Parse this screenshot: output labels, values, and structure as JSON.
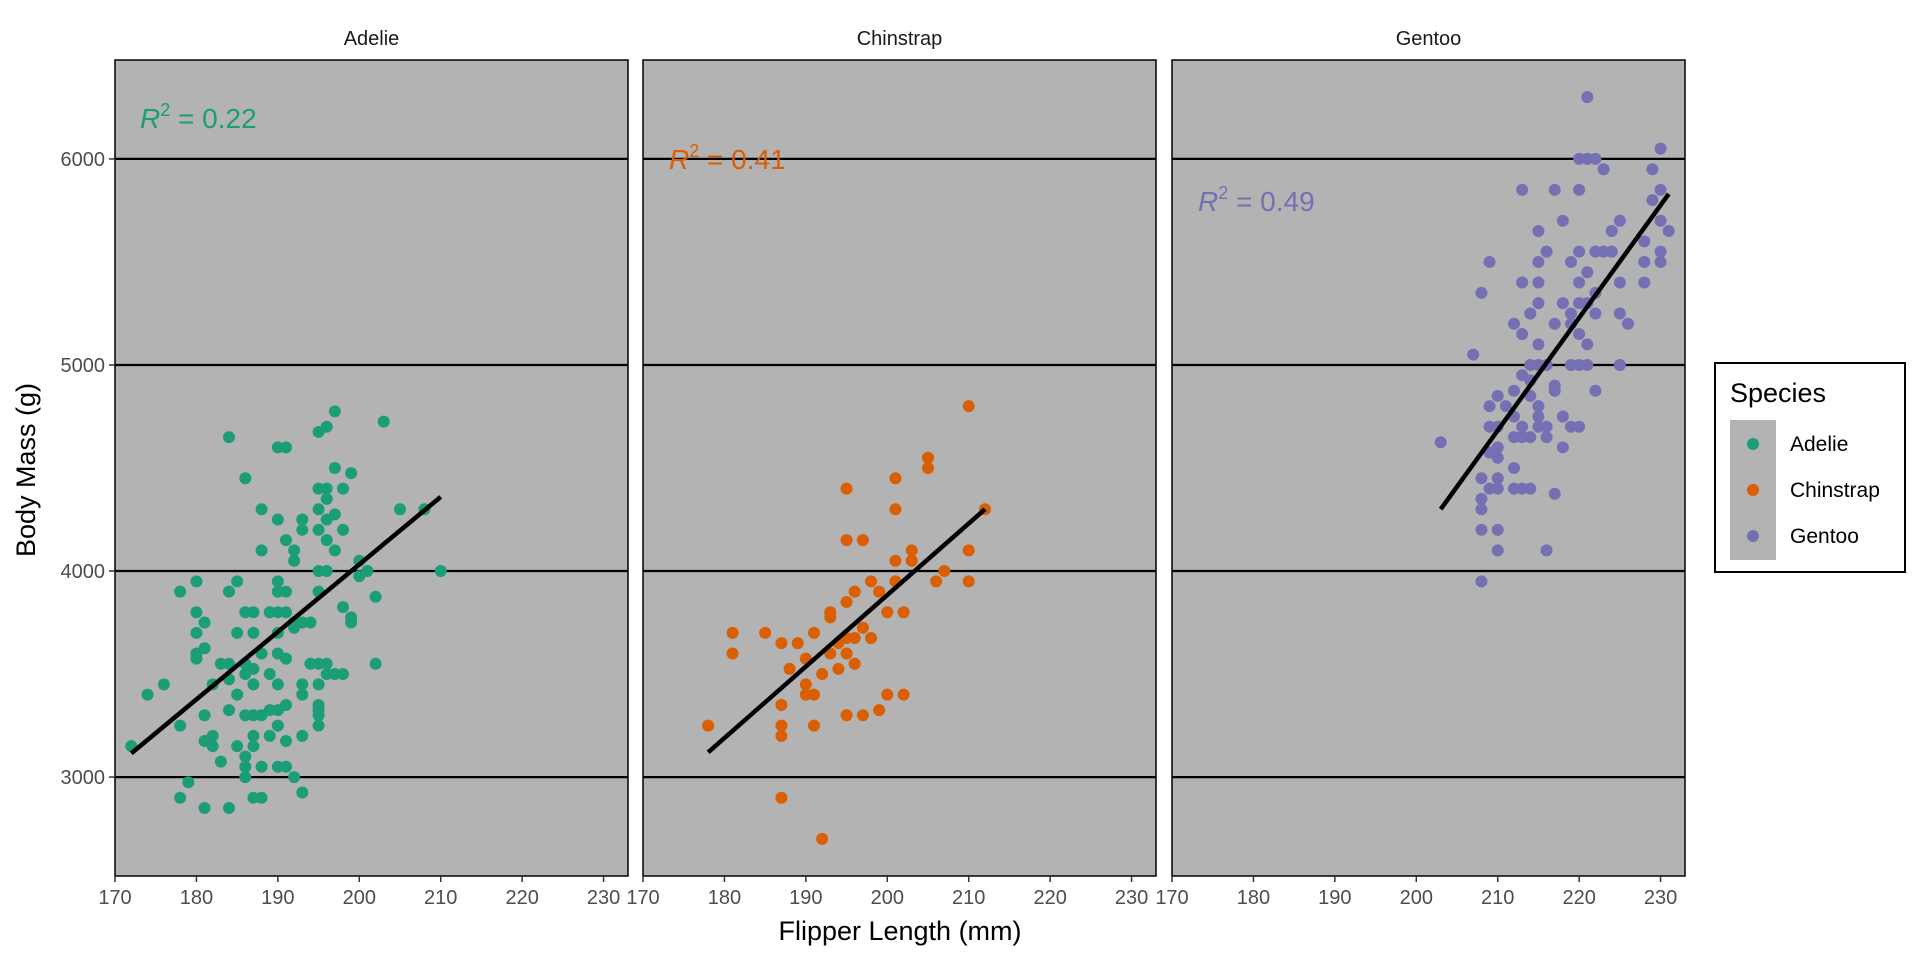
{
  "chart_data": {
    "type": "scatter",
    "facets": [
      "Adelie",
      "Chinstrap",
      "Gentoo"
    ],
    "xlabel": "Flipper Length (mm)",
    "ylabel": "Body Mass (g)",
    "xlim": [
      170,
      233
    ],
    "ylim": [
      2520,
      6480
    ],
    "x_ticks": [
      170,
      180,
      190,
      200,
      210,
      220,
      230
    ],
    "y_ticks": [
      3000,
      4000,
      5000,
      6000
    ],
    "background": "#b3b3b3",
    "grid": "horizontal major lines only",
    "legend": {
      "title": "Species",
      "position": "right",
      "entries": [
        "Adelie",
        "Chinstrap",
        "Gentoo"
      ]
    },
    "colors": {
      "Adelie": "#1b9e77",
      "Chinstrap": "#d95f02",
      "Gentoo": "#7570b3",
      "fit": "#000000"
    },
    "series": [
      {
        "name": "Adelie",
        "r2_label": {
          "symbol": "R",
          "sup": "2",
          "value": " = 0.22"
        },
        "fit": {
          "x": [
            172,
            210
          ],
          "y": [
            3115,
            4360
          ]
        },
        "points": [
          [
            172,
            3150
          ],
          [
            174,
            3400
          ],
          [
            176,
            3450
          ],
          [
            178,
            3250
          ],
          [
            178,
            2900
          ],
          [
            178,
            3900
          ],
          [
            179,
            2975
          ],
          [
            180,
            3575
          ],
          [
            180,
            3600
          ],
          [
            180,
            3700
          ],
          [
            180,
            3800
          ],
          [
            180,
            3950
          ],
          [
            181,
            2850
          ],
          [
            181,
            3175
          ],
          [
            181,
            3300
          ],
          [
            181,
            3625
          ],
          [
            181,
            3750
          ],
          [
            182,
            3150
          ],
          [
            182,
            3200
          ],
          [
            182,
            3450
          ],
          [
            183,
            3075
          ],
          [
            183,
            3550
          ],
          [
            184,
            2850
          ],
          [
            184,
            3325
          ],
          [
            184,
            3475
          ],
          [
            184,
            3550
          ],
          [
            184,
            3900
          ],
          [
            184,
            4650
          ],
          [
            185,
            3150
          ],
          [
            185,
            3400
          ],
          [
            185,
            3700
          ],
          [
            185,
            3950
          ],
          [
            186,
            3000
          ],
          [
            186,
            3050
          ],
          [
            186,
            3100
          ],
          [
            186,
            3300
          ],
          [
            186,
            3500
          ],
          [
            186,
            3550
          ],
          [
            186,
            3800
          ],
          [
            186,
            4450
          ],
          [
            187,
            2900
          ],
          [
            187,
            3150
          ],
          [
            187,
            3200
          ],
          [
            187,
            3300
          ],
          [
            187,
            3450
          ],
          [
            187,
            3525
          ],
          [
            187,
            3700
          ],
          [
            187,
            3800
          ],
          [
            188,
            2900
          ],
          [
            188,
            3050
          ],
          [
            188,
            3300
          ],
          [
            188,
            3600
          ],
          [
            188,
            4100
          ],
          [
            188,
            4300
          ],
          [
            189,
            3200
          ],
          [
            189,
            3325
          ],
          [
            189,
            3500
          ],
          [
            189,
            3800
          ],
          [
            190,
            3050
          ],
          [
            190,
            3250
          ],
          [
            190,
            3325
          ],
          [
            190,
            3450
          ],
          [
            190,
            3600
          ],
          [
            190,
            3700
          ],
          [
            190,
            3800
          ],
          [
            190,
            3900
          ],
          [
            190,
            3950
          ],
          [
            190,
            4250
          ],
          [
            190,
            4600
          ],
          [
            191,
            3050
          ],
          [
            191,
            3175
          ],
          [
            191,
            3350
          ],
          [
            191,
            3575
          ],
          [
            191,
            3800
          ],
          [
            191,
            3900
          ],
          [
            191,
            4150
          ],
          [
            191,
            4600
          ],
          [
            192,
            3000
          ],
          [
            192,
            3725
          ],
          [
            192,
            3750
          ],
          [
            192,
            4050
          ],
          [
            192,
            4100
          ],
          [
            193,
            2925
          ],
          [
            193,
            3200
          ],
          [
            193,
            3400
          ],
          [
            193,
            3450
          ],
          [
            193,
            3750
          ],
          [
            193,
            4200
          ],
          [
            193,
            4250
          ],
          [
            194,
            3550
          ],
          [
            194,
            3750
          ],
          [
            195,
            3250
          ],
          [
            195,
            3300
          ],
          [
            195,
            3325
          ],
          [
            195,
            3350
          ],
          [
            195,
            3450
          ],
          [
            195,
            3550
          ],
          [
            195,
            3900
          ],
          [
            195,
            4000
          ],
          [
            195,
            4200
          ],
          [
            195,
            4300
          ],
          [
            195,
            4400
          ],
          [
            195,
            4675
          ],
          [
            196,
            3550
          ],
          [
            196,
            3500
          ],
          [
            196,
            4000
          ],
          [
            196,
            4150
          ],
          [
            196,
            4250
          ],
          [
            196,
            4350
          ],
          [
            196,
            4400
          ],
          [
            196,
            4700
          ],
          [
            197,
            3500
          ],
          [
            197,
            4100
          ],
          [
            197,
            4275
          ],
          [
            197,
            4500
          ],
          [
            197,
            4775
          ],
          [
            198,
            3500
          ],
          [
            198,
            3825
          ],
          [
            198,
            4200
          ],
          [
            198,
            4400
          ],
          [
            199,
            3750
          ],
          [
            199,
            3775
          ],
          [
            199,
            4475
          ],
          [
            200,
            3975
          ],
          [
            200,
            4050
          ],
          [
            201,
            4000
          ],
          [
            202,
            3550
          ],
          [
            202,
            3875
          ],
          [
            203,
            4725
          ],
          [
            205,
            4300
          ],
          [
            208,
            4300
          ],
          [
            210,
            4000
          ]
        ]
      },
      {
        "name": "Chinstrap",
        "r2_label": {
          "symbol": "R",
          "sup": "2",
          "value": " = 0.41"
        },
        "fit": {
          "x": [
            178,
            212
          ],
          "y": [
            3120,
            4300
          ]
        },
        "points": [
          [
            178,
            3250
          ],
          [
            181,
            3700
          ],
          [
            181,
            3600
          ],
          [
            185,
            3700
          ],
          [
            187,
            2900
          ],
          [
            187,
            3200
          ],
          [
            187,
            3250
          ],
          [
            187,
            3350
          ],
          [
            187,
            3650
          ],
          [
            188,
            3525
          ],
          [
            189,
            3650
          ],
          [
            190,
            3400
          ],
          [
            190,
            3450
          ],
          [
            190,
            3575
          ],
          [
            191,
            3250
          ],
          [
            191,
            3400
          ],
          [
            191,
            3700
          ],
          [
            192,
            2700
          ],
          [
            192,
            3500
          ],
          [
            193,
            3600
          ],
          [
            193,
            3775
          ],
          [
            193,
            3800
          ],
          [
            194,
            3525
          ],
          [
            194,
            3650
          ],
          [
            195,
            3300
          ],
          [
            195,
            3600
          ],
          [
            195,
            3675
          ],
          [
            195,
            3850
          ],
          [
            195,
            4150
          ],
          [
            195,
            4400
          ],
          [
            196,
            3550
          ],
          [
            196,
            3675
          ],
          [
            196,
            3900
          ],
          [
            197,
            3300
          ],
          [
            197,
            3725
          ],
          [
            197,
            4150
          ],
          [
            198,
            3675
          ],
          [
            198,
            3950
          ],
          [
            199,
            3325
          ],
          [
            199,
            3900
          ],
          [
            200,
            3400
          ],
          [
            200,
            3800
          ],
          [
            201,
            3950
          ],
          [
            201,
            4050
          ],
          [
            201,
            4300
          ],
          [
            201,
            4450
          ],
          [
            202,
            3400
          ],
          [
            202,
            3800
          ],
          [
            203,
            4050
          ],
          [
            203,
            4100
          ],
          [
            205,
            4500
          ],
          [
            205,
            4550
          ],
          [
            206,
            3950
          ],
          [
            207,
            4000
          ],
          [
            210,
            3950
          ],
          [
            210,
            4100
          ],
          [
            210,
            4800
          ],
          [
            212,
            4300
          ]
        ]
      },
      {
        "name": "Gentoo",
        "r2_label": {
          "symbol": "R",
          "sup": "2",
          "value": " = 0.49"
        },
        "fit": {
          "x": [
            203,
            231
          ],
          "y": [
            4300,
            5830
          ]
        },
        "points": [
          [
            203,
            4625
          ],
          [
            207,
            5050
          ],
          [
            208,
            3950
          ],
          [
            208,
            4200
          ],
          [
            208,
            4300
          ],
          [
            208,
            4350
          ],
          [
            208,
            4450
          ],
          [
            208,
            5350
          ],
          [
            209,
            4400
          ],
          [
            209,
            4575
          ],
          [
            209,
            4700
          ],
          [
            209,
            4800
          ],
          [
            209,
            5500
          ],
          [
            210,
            4100
          ],
          [
            210,
            4200
          ],
          [
            210,
            4400
          ],
          [
            210,
            4450
          ],
          [
            210,
            4550
          ],
          [
            210,
            4600
          ],
          [
            210,
            4700
          ],
          [
            210,
            4850
          ],
          [
            211,
            4800
          ],
          [
            212,
            4400
          ],
          [
            212,
            4500
          ],
          [
            212,
            4650
          ],
          [
            212,
            4750
          ],
          [
            212,
            4875
          ],
          [
            212,
            5200
          ],
          [
            213,
            4400
          ],
          [
            213,
            4650
          ],
          [
            213,
            4700
          ],
          [
            213,
            4950
          ],
          [
            213,
            5150
          ],
          [
            213,
            5400
          ],
          [
            213,
            5850
          ],
          [
            214,
            4400
          ],
          [
            214,
            4650
          ],
          [
            214,
            4850
          ],
          [
            214,
            4925
          ],
          [
            214,
            5000
          ],
          [
            214,
            5250
          ],
          [
            215,
            4700
          ],
          [
            215,
            4750
          ],
          [
            215,
            4800
          ],
          [
            215,
            5000
          ],
          [
            215,
            5100
          ],
          [
            215,
            5300
          ],
          [
            215,
            5400
          ],
          [
            215,
            5500
          ],
          [
            215,
            5650
          ],
          [
            216,
            4100
          ],
          [
            216,
            4650
          ],
          [
            216,
            4700
          ],
          [
            216,
            5000
          ],
          [
            216,
            5550
          ],
          [
            217,
            4375
          ],
          [
            217,
            4875
          ],
          [
            217,
            4900
          ],
          [
            217,
            5200
          ],
          [
            217,
            5850
          ],
          [
            218,
            4600
          ],
          [
            218,
            4750
          ],
          [
            218,
            5300
          ],
          [
            218,
            5700
          ],
          [
            219,
            4700
          ],
          [
            219,
            5000
          ],
          [
            219,
            5200
          ],
          [
            219,
            5250
          ],
          [
            219,
            5500
          ],
          [
            220,
            4700
          ],
          [
            220,
            5000
          ],
          [
            220,
            5150
          ],
          [
            220,
            5300
          ],
          [
            220,
            5400
          ],
          [
            220,
            5550
          ],
          [
            220,
            5850
          ],
          [
            220,
            6000
          ],
          [
            221,
            5000
          ],
          [
            221,
            5100
          ],
          [
            221,
            5300
          ],
          [
            221,
            5450
          ],
          [
            221,
            6000
          ],
          [
            221,
            6300
          ],
          [
            222,
            4875
          ],
          [
            222,
            5250
          ],
          [
            222,
            5350
          ],
          [
            222,
            5550
          ],
          [
            222,
            6000
          ],
          [
            223,
            5550
          ],
          [
            223,
            5950
          ],
          [
            224,
            5550
          ],
          [
            224,
            5650
          ],
          [
            225,
            5000
          ],
          [
            225,
            5250
          ],
          [
            225,
            5400
          ],
          [
            225,
            5700
          ],
          [
            226,
            5200
          ],
          [
            228,
            5400
          ],
          [
            228,
            5500
          ],
          [
            228,
            5600
          ],
          [
            229,
            5800
          ],
          [
            229,
            5950
          ],
          [
            230,
            5500
          ],
          [
            230,
            5550
          ],
          [
            230,
            5700
          ],
          [
            230,
            5850
          ],
          [
            230,
            6050
          ],
          [
            231,
            5650
          ]
        ]
      }
    ]
  }
}
